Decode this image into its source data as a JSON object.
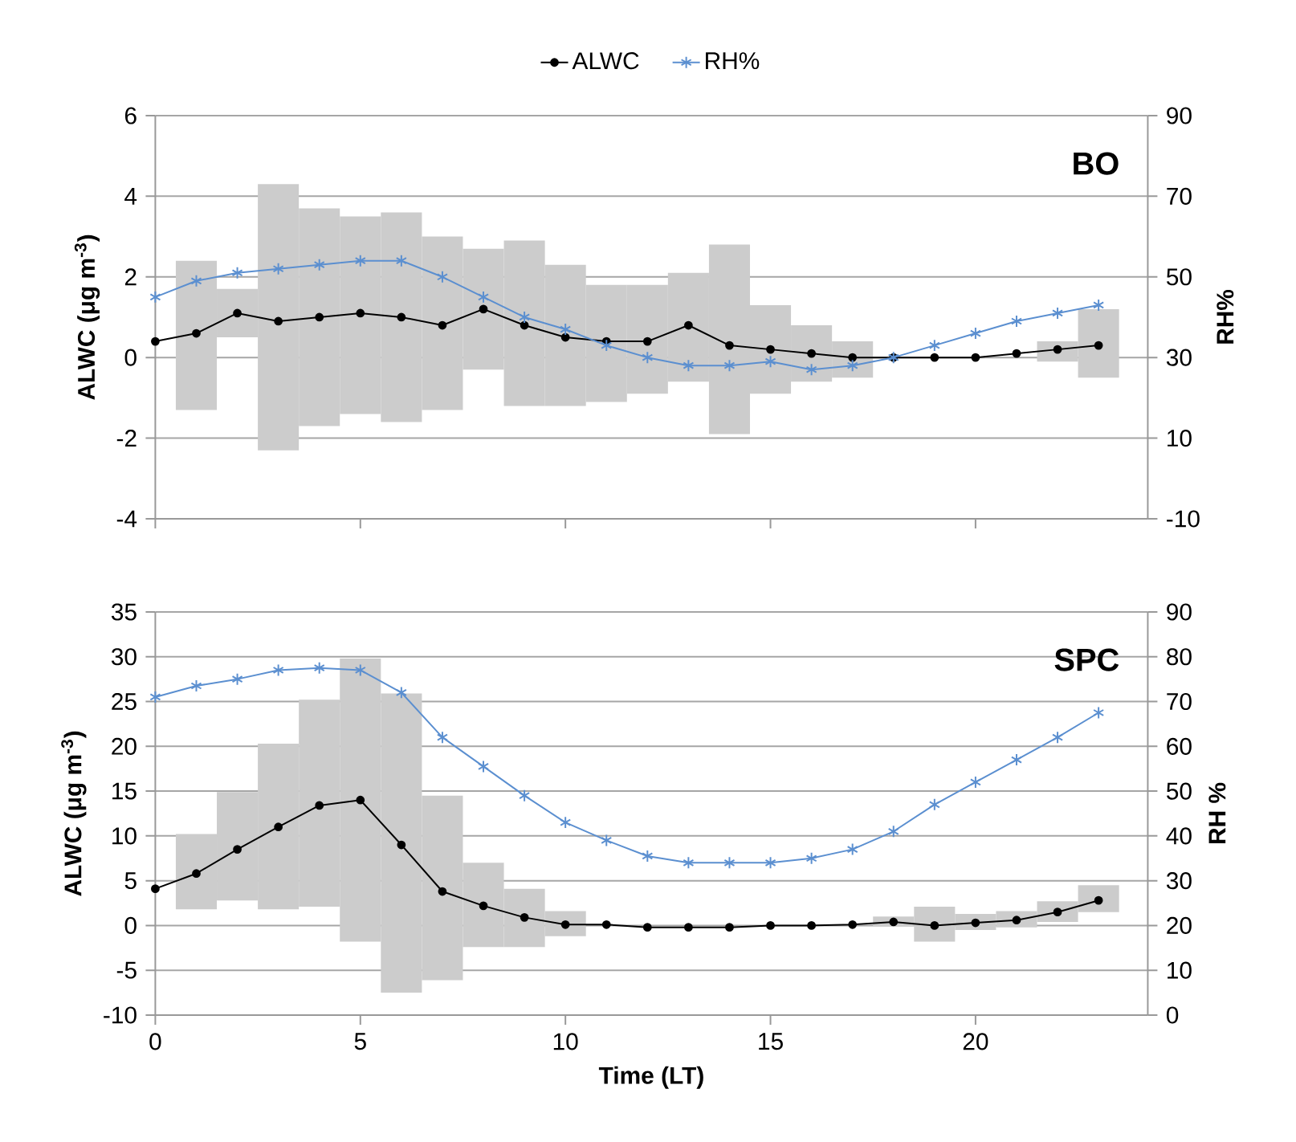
{
  "chart_data": [
    {
      "type": "line",
      "title": "BO",
      "ylabel": "ALWC (μg m$^{-3}$)",
      "y2label": "RH%",
      "x": [
        0,
        1,
        2,
        3,
        4,
        5,
        6,
        7,
        8,
        9,
        10,
        11,
        12,
        13,
        14,
        15,
        16,
        17,
        18,
        19,
        20,
        21,
        22,
        23
      ],
      "xlim": [
        0,
        24.2
      ],
      "xticks": [
        0,
        5,
        10,
        15,
        20
      ],
      "ylim": [
        -4,
        6
      ],
      "yticks": [
        -4,
        -2,
        0,
        2,
        4,
        6
      ],
      "y2lim": [
        -10,
        90
      ],
      "y2ticks": [
        -10,
        10,
        30,
        50,
        70,
        90
      ],
      "grid": "y",
      "legend": "top",
      "tick_labels": "y",
      "series": [
        {
          "type": "bar",
          "color": "#cccccc",
          "base": [
            null,
            -1.3,
            0.5,
            -2.3,
            -1.7,
            -1.4,
            -1.6,
            -1.3,
            -0.3,
            -1.2,
            -1.2,
            -1.1,
            -0.9,
            -0.6,
            -1.9,
            -0.9,
            -0.6,
            -0.5,
            null,
            null,
            null,
            null,
            -0.1,
            -0.5
          ],
          "values": [
            null,
            3.7,
            1.2,
            6.6,
            5.4,
            4.9,
            5.2,
            4.3,
            3.0,
            4.1,
            3.5,
            2.9,
            2.7,
            2.7,
            4.7,
            2.2,
            1.4,
            0.9,
            null,
            null,
            null,
            null,
            0.5,
            1.7
          ]
        },
        {
          "name": "ALWC",
          "color": "#000000",
          "marker": "circle",
          "values": [
            0.4,
            0.6,
            1.1,
            0.9,
            1.0,
            1.1,
            1.0,
            0.8,
            1.2,
            0.8,
            0.5,
            0.4,
            0.4,
            0.8,
            0.3,
            0.2,
            0.1,
            0.0,
            0.0,
            0.0,
            0.0,
            0.1,
            0.2,
            0.3
          ]
        },
        {
          "name": "RH%",
          "color": "#5b8fd0",
          "marker": "cross",
          "axis": "y2",
          "values": [
            45,
            49,
            51,
            52,
            53,
            54,
            54,
            50,
            45,
            40,
            37,
            33,
            30,
            28,
            28,
            29,
            27,
            28,
            30,
            33,
            36,
            39,
            41,
            43
          ]
        }
      ]
    },
    {
      "type": "line",
      "title": "SPC",
      "xlabel": "Time (LT)",
      "ylabel": "ALWC (μg m$^{-3}$)",
      "y2label": "RH %",
      "x": [
        0,
        1,
        2,
        3,
        4,
        5,
        6,
        7,
        8,
        9,
        10,
        11,
        12,
        13,
        14,
        15,
        16,
        17,
        18,
        19,
        20,
        21,
        22,
        23
      ],
      "xlim": [
        0,
        24.2
      ],
      "xticks": [
        0,
        5,
        10,
        15,
        20
      ],
      "ylim": [
        -10,
        35
      ],
      "yticks": [
        -10,
        -5,
        0,
        5,
        10,
        15,
        20,
        25,
        30,
        35
      ],
      "y2lim": [
        0,
        90
      ],
      "y2ticks": [
        0,
        10,
        20,
        30,
        40,
        50,
        60,
        70,
        80,
        90
      ],
      "grid": "y",
      "series": [
        {
          "type": "bar",
          "color": "#cccccc",
          "base": [
            null,
            1.8,
            2.8,
            1.8,
            2.1,
            -1.8,
            -7.5,
            -6.1,
            -2.4,
            -2.4,
            -1.2,
            null,
            null,
            null,
            null,
            null,
            null,
            null,
            -0.1,
            -1.8,
            -0.5,
            -0.2,
            0.4,
            1.5
          ],
          "values": [
            null,
            8.4,
            12.1,
            18.5,
            23.1,
            31.6,
            33.4,
            20.6,
            9.4,
            6.5,
            2.8,
            null,
            null,
            null,
            null,
            null,
            null,
            null,
            1.1,
            3.9,
            1.8,
            1.8,
            2.3,
            3.0
          ]
        },
        {
          "color": "#000000",
          "marker": "circle",
          "values": [
            4.1,
            5.8,
            8.5,
            11.0,
            13.4,
            14.0,
            9.0,
            3.8,
            2.2,
            0.9,
            0.1,
            0.1,
            -0.2,
            -0.2,
            -0.2,
            0.0,
            0.0,
            0.1,
            0.4,
            0.0,
            0.3,
            0.6,
            1.5,
            2.8
          ]
        },
        {
          "color": "#5b8fd0",
          "marker": "cross",
          "axis": "y2",
          "values": [
            71,
            73.5,
            75,
            77,
            77.5,
            77,
            72,
            62,
            55.5,
            49,
            43,
            39,
            35.5,
            34,
            34,
            34,
            35,
            37,
            41,
            47,
            52,
            57,
            62,
            67.5
          ]
        }
      ]
    }
  ]
}
